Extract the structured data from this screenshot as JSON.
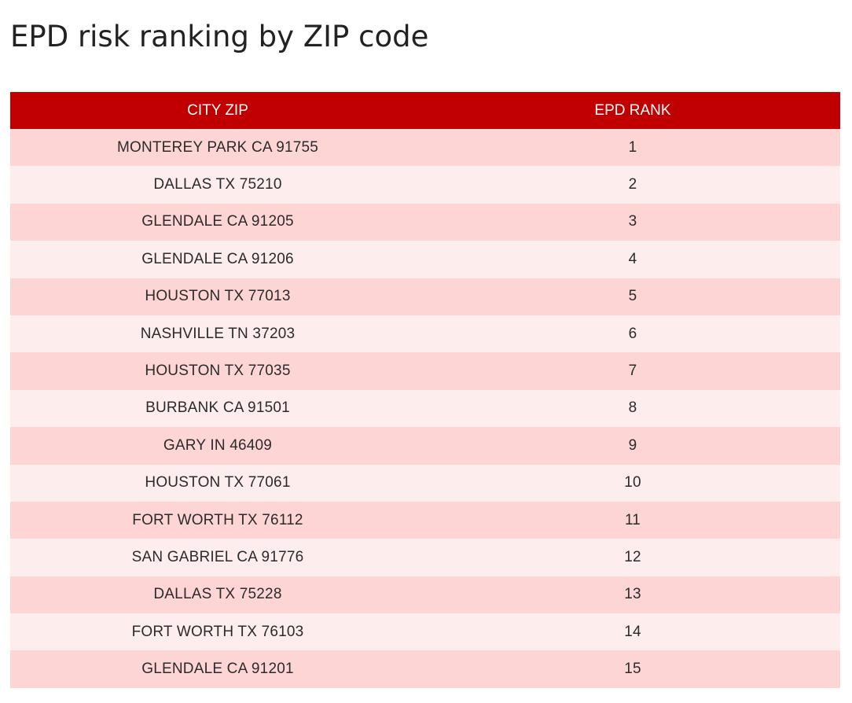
{
  "page": {
    "title": "EPD risk ranking by ZIP code"
  },
  "colors": {
    "header_bg": "#c00000",
    "header_text": "#ffffff",
    "row_odd": "#fed5d5",
    "row_even": "#feeded"
  },
  "table": {
    "columns": [
      "CITY ZIP",
      "EPD RANK"
    ],
    "rows": [
      {
        "city_zip": "MONTEREY PARK CA 91755",
        "rank": "1"
      },
      {
        "city_zip": "DALLAS TX 75210",
        "rank": "2"
      },
      {
        "city_zip": "GLENDALE CA 91205",
        "rank": "3"
      },
      {
        "city_zip": "GLENDALE CA 91206",
        "rank": "4"
      },
      {
        "city_zip": "HOUSTON TX 77013",
        "rank": "5"
      },
      {
        "city_zip": "NASHVILLE TN 37203",
        "rank": "6"
      },
      {
        "city_zip": "HOUSTON TX 77035",
        "rank": "7"
      },
      {
        "city_zip": "BURBANK CA 91501",
        "rank": "8"
      },
      {
        "city_zip": "GARY IN 46409",
        "rank": "9"
      },
      {
        "city_zip": "HOUSTON TX 77061",
        "rank": "10"
      },
      {
        "city_zip": "FORT WORTH TX 76112",
        "rank": "11"
      },
      {
        "city_zip": "SAN GABRIEL CA 91776",
        "rank": "12"
      },
      {
        "city_zip": "DALLAS TX 75228",
        "rank": "13"
      },
      {
        "city_zip": "FORT WORTH TX 76103",
        "rank": "14"
      },
      {
        "city_zip": "GLENDALE CA 91201",
        "rank": "15"
      }
    ]
  }
}
